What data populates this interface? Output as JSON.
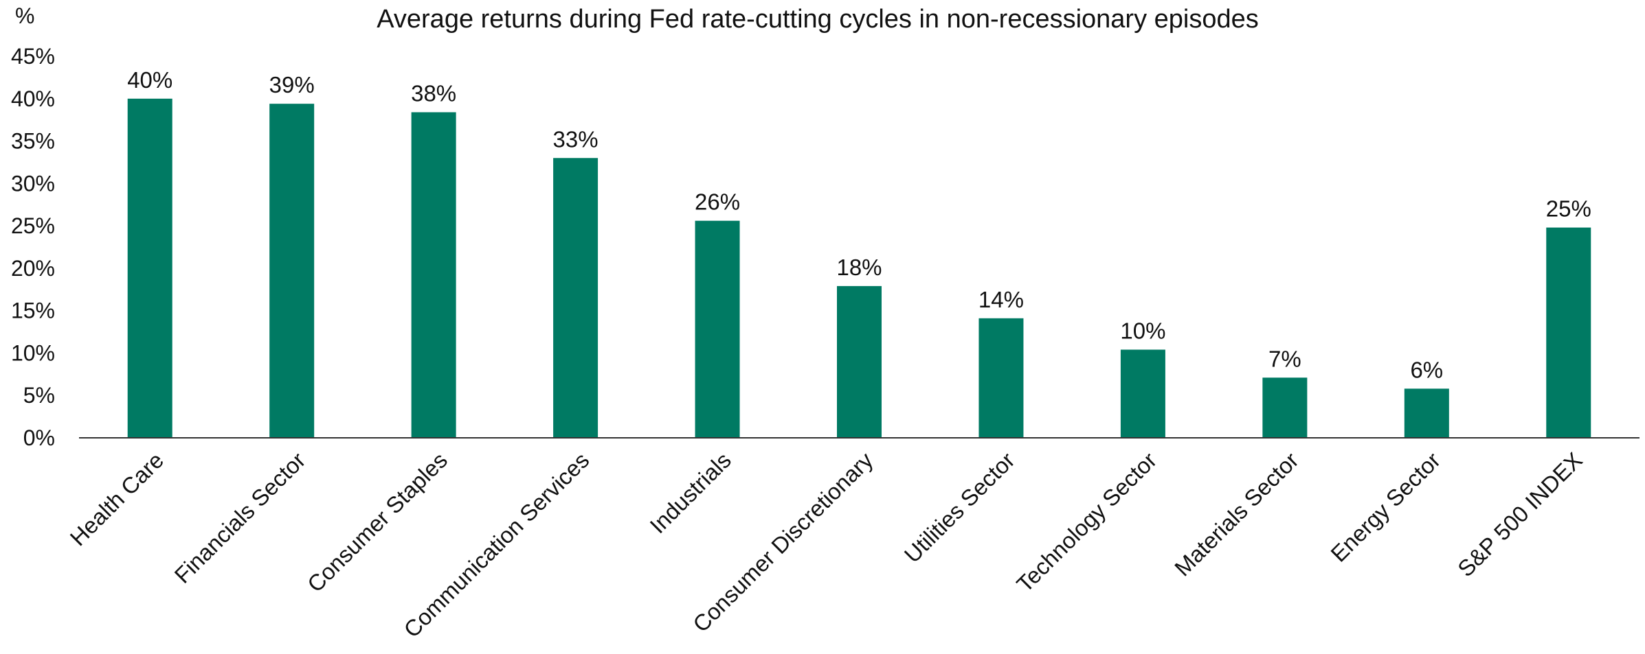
{
  "chart_data": {
    "type": "bar",
    "title": "Average returns during Fed rate-cutting cycles in non-recessionary episodes",
    "y_unit_label": "%",
    "xlabel": "",
    "ylabel": "",
    "ylim": [
      0,
      45
    ],
    "y_ticks": [
      "0%",
      "5%",
      "10%",
      "15%",
      "20%",
      "25%",
      "30%",
      "35%",
      "40%",
      "45%"
    ],
    "grid": false,
    "legend": "none",
    "bar_color": "#007A63",
    "categories": [
      "Health Care",
      "Financials Sector",
      "Consumer Staples",
      "Communication Services",
      "Industrials",
      "Consumer Discretionary",
      "Utilities Sector",
      "Technology Sector",
      "Materials Sector",
      "Energy Sector",
      "S&P 500 INDEX"
    ],
    "values": [
      40.0,
      39.4,
      38.4,
      33.0,
      25.6,
      17.9,
      14.1,
      10.4,
      7.1,
      5.8,
      24.8
    ],
    "data_labels": [
      "40%",
      "39%",
      "38%",
      "33%",
      "26%",
      "18%",
      "14%",
      "10%",
      "7%",
      "6%",
      "25%"
    ]
  }
}
